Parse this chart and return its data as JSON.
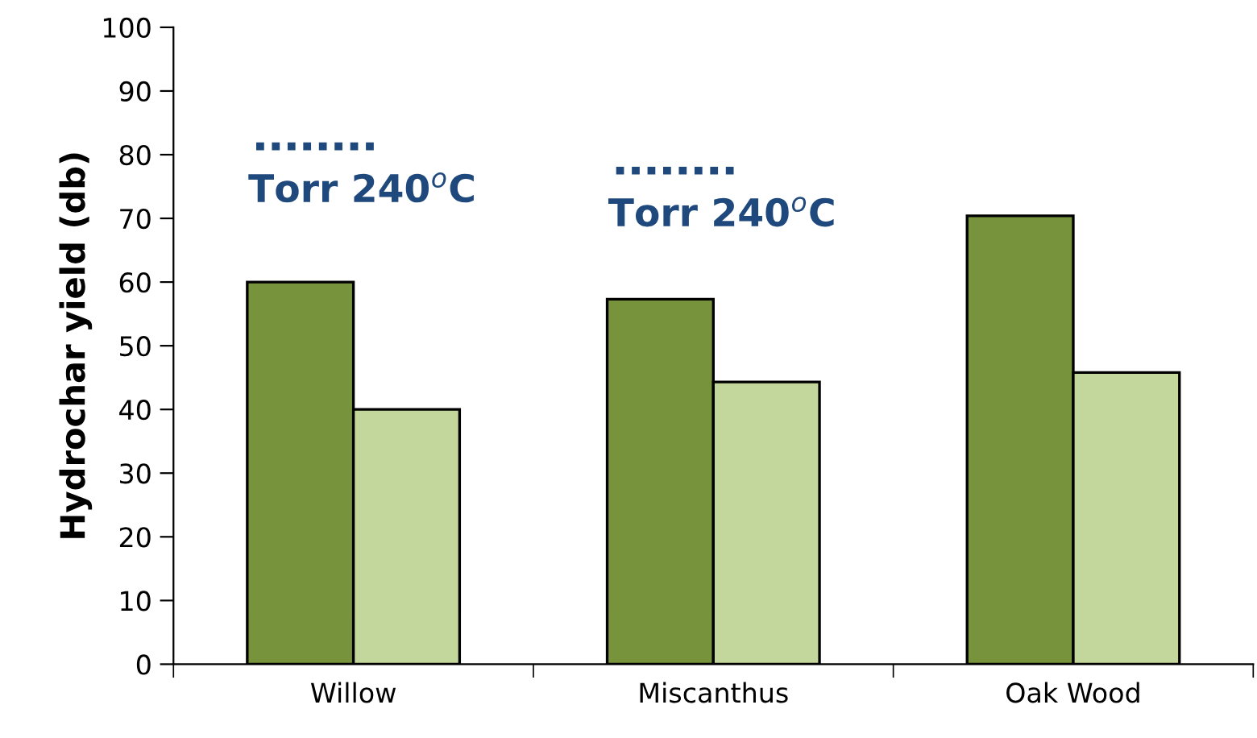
{
  "chart_data": {
    "type": "bar",
    "ylabel": "Hydrochar yield (db)",
    "categories": [
      "Willow",
      "Miscanthus",
      "Oak Wood"
    ],
    "series": [
      {
        "color": "#77933c",
        "values": [
          60.0,
          57.3,
          70.4
        ]
      },
      {
        "color": "#c3d69b",
        "values": [
          40.0,
          44.3,
          45.8
        ]
      }
    ],
    "ylim": [
      0,
      100
    ],
    "yticks": [
      0,
      10,
      20,
      30,
      40,
      50,
      60,
      70,
      80,
      90,
      100
    ],
    "grid": false,
    "legend": false,
    "ref_lines": [
      {
        "axis": "y",
        "value": 81.3,
        "label": "Torr 240$^{o}$C",
        "color": "#1f497d",
        "line_style": "dotted"
      },
      {
        "axis": "y",
        "value": 77.5,
        "label": "Torr 240$^{o}$C",
        "color": "#1f497d",
        "line_style": "dotted"
      }
    ]
  }
}
